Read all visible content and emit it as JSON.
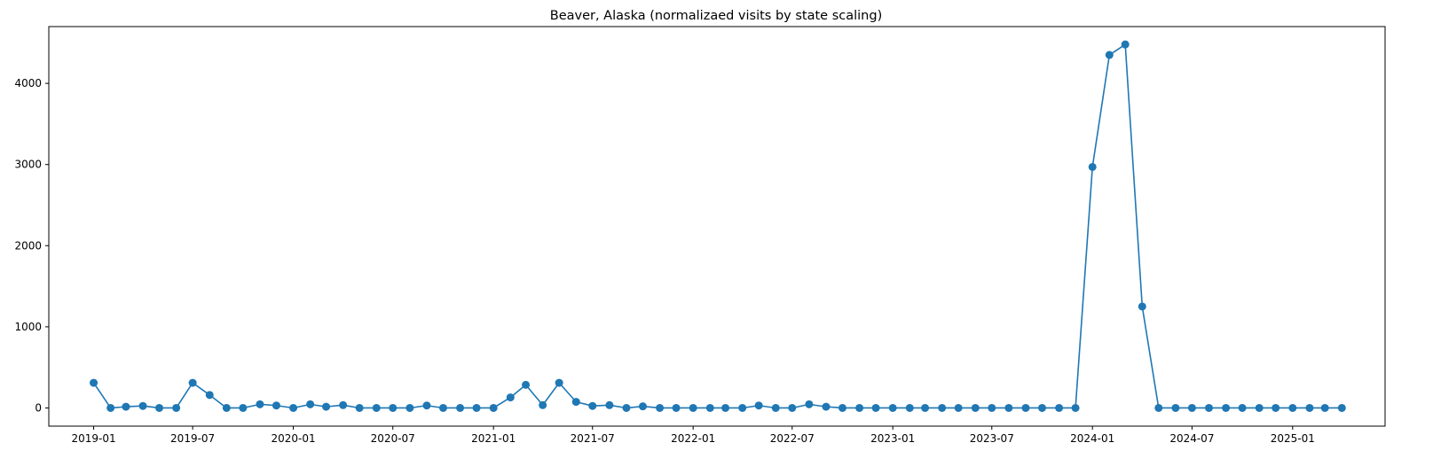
{
  "chart_data": {
    "type": "line",
    "title": "Beaver, Alaska (normalizaed visits by state scaling)",
    "xlabel": "",
    "ylabel": "",
    "x_range": [
      "2018-10-11",
      "2025-06-19"
    ],
    "ylim": [
      -224,
      4700
    ],
    "grid": false,
    "legend": "none",
    "marker": "circle",
    "colors": {
      "series": "#1f77b4",
      "axis": "#000000",
      "background": "#ffffff"
    },
    "xticks": [
      {
        "date": "2019-01-01",
        "label": "2019-01"
      },
      {
        "date": "2019-07-01",
        "label": "2019-07"
      },
      {
        "date": "2020-01-01",
        "label": "2020-01"
      },
      {
        "date": "2020-07-01",
        "label": "2020-07"
      },
      {
        "date": "2021-01-01",
        "label": "2021-01"
      },
      {
        "date": "2021-07-01",
        "label": "2021-07"
      },
      {
        "date": "2022-01-01",
        "label": "2022-01"
      },
      {
        "date": "2022-07-01",
        "label": "2022-07"
      },
      {
        "date": "2023-01-01",
        "label": "2023-01"
      },
      {
        "date": "2023-07-01",
        "label": "2023-07"
      },
      {
        "date": "2024-01-01",
        "label": "2024-01"
      },
      {
        "date": "2024-07-01",
        "label": "2024-07"
      },
      {
        "date": "2025-01-01",
        "label": "2025-01"
      }
    ],
    "yticks": [
      {
        "value": 0,
        "label": "0"
      },
      {
        "value": 1000,
        "label": "1000"
      },
      {
        "value": 2000,
        "label": "2000"
      },
      {
        "value": 3000,
        "label": "3000"
      },
      {
        "value": 4000,
        "label": "4000"
      }
    ],
    "series": [
      {
        "x": [
          "2019-01-01",
          "2019-02-01",
          "2019-03-01",
          "2019-04-01",
          "2019-05-01",
          "2019-06-01",
          "2019-07-01",
          "2019-08-01",
          "2019-09-01",
          "2019-10-01",
          "2019-11-01",
          "2019-12-01",
          "2020-01-01",
          "2020-02-01",
          "2020-03-01",
          "2020-04-01",
          "2020-05-01",
          "2020-06-01",
          "2020-07-01",
          "2020-08-01",
          "2020-09-01",
          "2020-10-01",
          "2020-11-01",
          "2020-12-01",
          "2021-01-01",
          "2021-02-01",
          "2021-03-01",
          "2021-04-01",
          "2021-05-01",
          "2021-06-01",
          "2021-07-01",
          "2021-08-01",
          "2021-09-01",
          "2021-10-01",
          "2021-11-01",
          "2021-12-01",
          "2022-01-01",
          "2022-02-01",
          "2022-03-01",
          "2022-04-01",
          "2022-05-01",
          "2022-06-01",
          "2022-07-01",
          "2022-08-01",
          "2022-09-01",
          "2022-10-01",
          "2022-11-01",
          "2022-12-01",
          "2023-01-01",
          "2023-02-01",
          "2023-03-01",
          "2023-04-01",
          "2023-05-01",
          "2023-06-01",
          "2023-07-01",
          "2023-08-01",
          "2023-09-01",
          "2023-10-01",
          "2023-11-01",
          "2023-12-01",
          "2024-01-01",
          "2024-02-01",
          "2024-03-01",
          "2024-04-01",
          "2024-05-01",
          "2024-06-01",
          "2024-07-01",
          "2024-08-01",
          "2024-09-01",
          "2024-10-01",
          "2024-11-01",
          "2024-12-01",
          "2025-01-01",
          "2025-02-01",
          "2025-03-01",
          "2025-04-01"
        ],
        "values": [
          310,
          0,
          15,
          25,
          0,
          0,
          310,
          160,
          0,
          0,
          45,
          30,
          0,
          45,
          15,
          35,
          0,
          0,
          0,
          0,
          30,
          0,
          0,
          0,
          0,
          130,
          285,
          35,
          310,
          75,
          25,
          35,
          0,
          20,
          0,
          0,
          0,
          0,
          0,
          0,
          30,
          0,
          0,
          45,
          15,
          0,
          0,
          0,
          0,
          0,
          0,
          0,
          0,
          0,
          0,
          0,
          0,
          0,
          0,
          0,
          2970,
          4350,
          4480,
          1250,
          0,
          0,
          0,
          0,
          0,
          0,
          0,
          0,
          0,
          0,
          0,
          0
        ]
      }
    ]
  }
}
